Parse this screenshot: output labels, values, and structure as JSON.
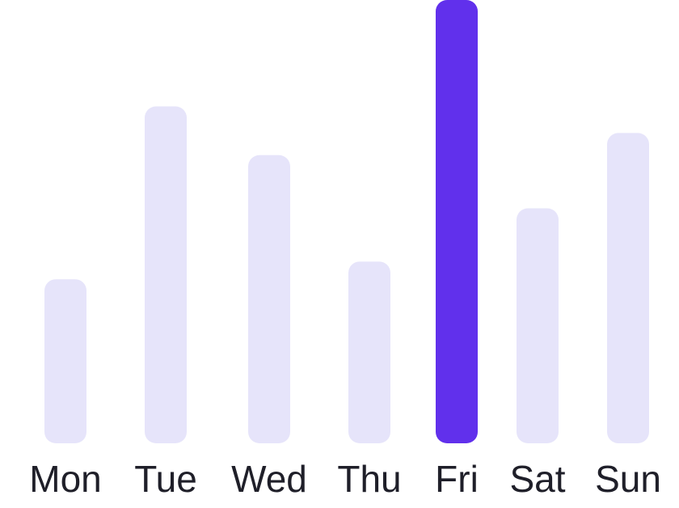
{
  "chart_data": {
    "type": "bar",
    "categories": [
      "Mon",
      "Tue",
      "Wed",
      "Thu",
      "Fri",
      "Sat",
      "Sun"
    ],
    "values": [
      37,
      76,
      65,
      41,
      100,
      53,
      70
    ],
    "ylim": [
      0,
      100
    ],
    "highlighted_category": "Fri",
    "grid": false,
    "legend": "none",
    "colors": {
      "bar": "#e6e4fa",
      "highlight": "#6130ec",
      "label": "#1f1f29"
    }
  }
}
